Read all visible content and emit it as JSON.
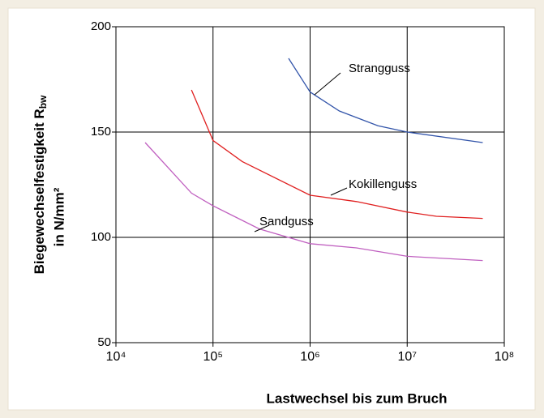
{
  "chart_data": {
    "type": "line",
    "xlabel": "Lastwechsel bis zum Bruch",
    "ylabel": {
      "main": "Biegewechselfestigkeit R",
      "sub": "bw",
      "second": "in N/mm²"
    },
    "xscale": "log",
    "xlim": [
      10000,
      100000000
    ],
    "xticks": [
      {
        "value": 10000,
        "label": "10⁴"
      },
      {
        "value": 100000,
        "label": "10⁵"
      },
      {
        "value": 1000000,
        "label": "10⁶"
      },
      {
        "value": 10000000,
        "label": "10⁷"
      },
      {
        "value": 100000000,
        "label": "10⁸"
      }
    ],
    "ylim": [
      50,
      200
    ],
    "yticks": [
      50,
      100,
      150,
      200
    ],
    "grid": true,
    "series": [
      {
        "name": "Strangguss",
        "color": "#3355aa",
        "x": [
          600000,
          1000000,
          2000000,
          5000000,
          10000000,
          60000000
        ],
        "values": [
          185,
          169,
          160,
          153,
          150,
          145
        ]
      },
      {
        "name": "Kokillenguss",
        "color": "#e02020",
        "x": [
          60000,
          100000,
          200000,
          1000000,
          3000000,
          10000000,
          20000000,
          60000000
        ],
        "values": [
          170,
          146,
          136,
          120,
          117,
          112,
          110,
          109
        ]
      },
      {
        "name": "Sandguss",
        "color": "#c060c0",
        "x": [
          20000,
          60000,
          100000,
          300000,
          1000000,
          3000000,
          10000000,
          60000000
        ],
        "values": [
          145,
          121,
          115,
          104,
          97,
          95,
          91,
          89
        ]
      }
    ]
  }
}
